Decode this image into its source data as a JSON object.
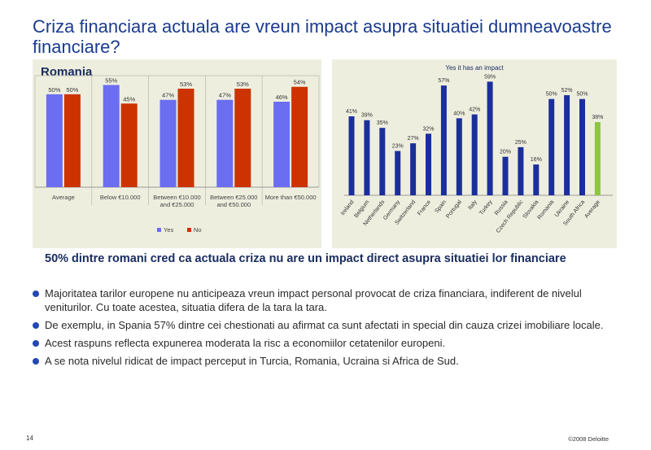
{
  "slide": {
    "title": "Criza financiara actuala are vreun impact asupra situatiei dumneavoastre financiare?",
    "headline": "50% dintre romani cred ca actuala criza nu are un impact direct asupra situatiei lor financiare",
    "bullets": [
      "Majoritatea tarilor europene nu anticipeaza vreun impact personal provocat de criza financiara, indiferent de nivelul veniturilor. Cu toate acestea, situatia difera de la tara la tara.",
      "De exemplu, in Spania 57% dintre cei chestionati au afirmat ca sunt afectati in special din cauza crizei imobiliare locale.",
      "Acest raspuns reflecta expunerea moderata la risc a economiilor cetatenilor europeni.",
      "A se nota nivelul ridicat de impact perceput in Turcia, Romania, Ucraina si Africa de Sud."
    ],
    "page_number": "14",
    "copyright": "©2008 Deloitte"
  },
  "colors": {
    "title": "#1a3b8f",
    "yes": "#6b6ef0",
    "no": "#cc3300",
    "country_bar": "#1b2f9c",
    "average_bar": "#8dc63f",
    "panel_bg": "#eeeedf"
  },
  "chart_data": [
    {
      "type": "bar",
      "title": "Romania",
      "categories": [
        "Average",
        "Below €10.000",
        "Between €10.000 and €25.000",
        "Between €25.000 and €50.000",
        "More than €50.000"
      ],
      "series": [
        {
          "name": "Yes",
          "values": [
            50,
            55,
            47,
            47,
            46
          ]
        },
        {
          "name": "No",
          "values": [
            50,
            45,
            53,
            53,
            54
          ]
        }
      ],
      "value_suffix": "%",
      "ylim": [
        0,
        60
      ],
      "legend": "bottom",
      "grid": false
    },
    {
      "type": "bar",
      "title": "Yes it has an impact",
      "categories": [
        "Ireland",
        "Belgium",
        "Netherlands",
        "Germany",
        "Switzerland",
        "France",
        "Spain",
        "Portugal",
        "Italy",
        "Turkey",
        "Russia",
        "Czech Republic",
        "Slovakia",
        "Romania",
        "Ukraine",
        "South Africa",
        "Average"
      ],
      "values": [
        41,
        39,
        35,
        23,
        27,
        32,
        57,
        40,
        42,
        59,
        20,
        25,
        16,
        50,
        52,
        50,
        38
      ],
      "value_suffix": "%",
      "ylim": [
        0,
        65
      ],
      "grid": false
    }
  ]
}
